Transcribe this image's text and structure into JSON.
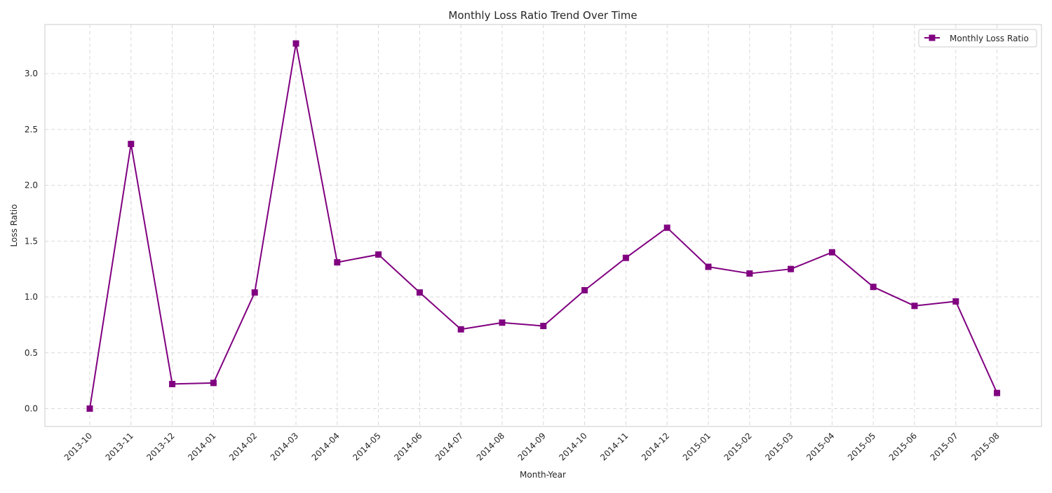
{
  "chart_data": {
    "type": "line",
    "title": "Monthly Loss Ratio Trend Over Time",
    "xlabel": "Month-Year",
    "ylabel": "Loss Ratio",
    "categories": [
      "2013-10",
      "2013-11",
      "2013-12",
      "2014-01",
      "2014-02",
      "2014-03",
      "2014-04",
      "2014-05",
      "2014-06",
      "2014-07",
      "2014-08",
      "2014-09",
      "2014-10",
      "2014-11",
      "2014-12",
      "2015-01",
      "2015-02",
      "2015-03",
      "2015-04",
      "2015-05",
      "2015-06",
      "2015-07",
      "2015-08"
    ],
    "series": [
      {
        "name": "Monthly Loss Ratio",
        "color": "#800080",
        "marker": "square",
        "values": [
          0.0,
          2.37,
          0.22,
          0.23,
          1.04,
          3.27,
          1.31,
          1.38,
          1.04,
          0.71,
          0.77,
          0.74,
          1.06,
          1.35,
          1.62,
          1.27,
          1.21,
          1.25,
          1.4,
          1.09,
          0.92,
          0.96,
          0.14
        ]
      }
    ],
    "ylim": [
      -0.16,
      3.44
    ],
    "yticks": [
      "0.0",
      "0.5",
      "1.0",
      "1.5",
      "2.0",
      "2.5",
      "3.0"
    ],
    "grid": true,
    "legend_position": "top-right"
  }
}
